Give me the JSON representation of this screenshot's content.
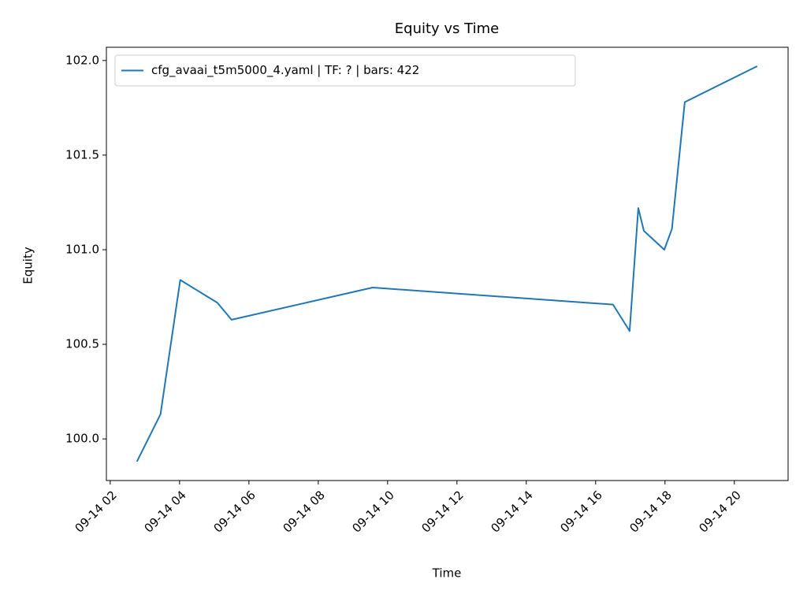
{
  "chart_data": {
    "type": "line",
    "title": "Equity vs Time",
    "xlabel": "Time",
    "ylabel": "Equity",
    "x": [
      2.77,
      3.45,
      4.02,
      5.09,
      5.5,
      9.57,
      16.5,
      16.98,
      17.23,
      17.39,
      17.98,
      18.2,
      18.57,
      20.66
    ],
    "series": [
      {
        "name": "cfg_avaai_t5m5000_4.yaml | TF: ? | bars: 422",
        "color": "#1f77b4",
        "values": [
          99.88,
          100.13,
          100.84,
          100.72,
          100.63,
          100.8,
          100.71,
          100.57,
          101.22,
          101.1,
          101.0,
          101.11,
          101.78,
          101.97
        ]
      }
    ],
    "xlim": [
      1.89,
      21.55
    ],
    "xticks": [
      {
        "value": 2,
        "label": "09-14 02"
      },
      {
        "value": 4,
        "label": "09-14 04"
      },
      {
        "value": 6,
        "label": "09-14 06"
      },
      {
        "value": 8,
        "label": "09-14 08"
      },
      {
        "value": 10,
        "label": "09-14 10"
      },
      {
        "value": 12,
        "label": "09-14 12"
      },
      {
        "value": 14,
        "label": "09-14 14"
      },
      {
        "value": 16,
        "label": "09-14 16"
      },
      {
        "value": 18,
        "label": "09-14 18"
      },
      {
        "value": 20,
        "label": "09-14 20"
      }
    ],
    "ylim": [
      99.78,
      102.07
    ],
    "yticks": [
      {
        "value": 100,
        "label": "100.0"
      },
      100.5,
      {
        "value": 101,
        "label": "101.0"
      },
      101.5,
      {
        "value": 102,
        "label": "102.0"
      }
    ],
    "grid": false,
    "legend": "upper left"
  }
}
